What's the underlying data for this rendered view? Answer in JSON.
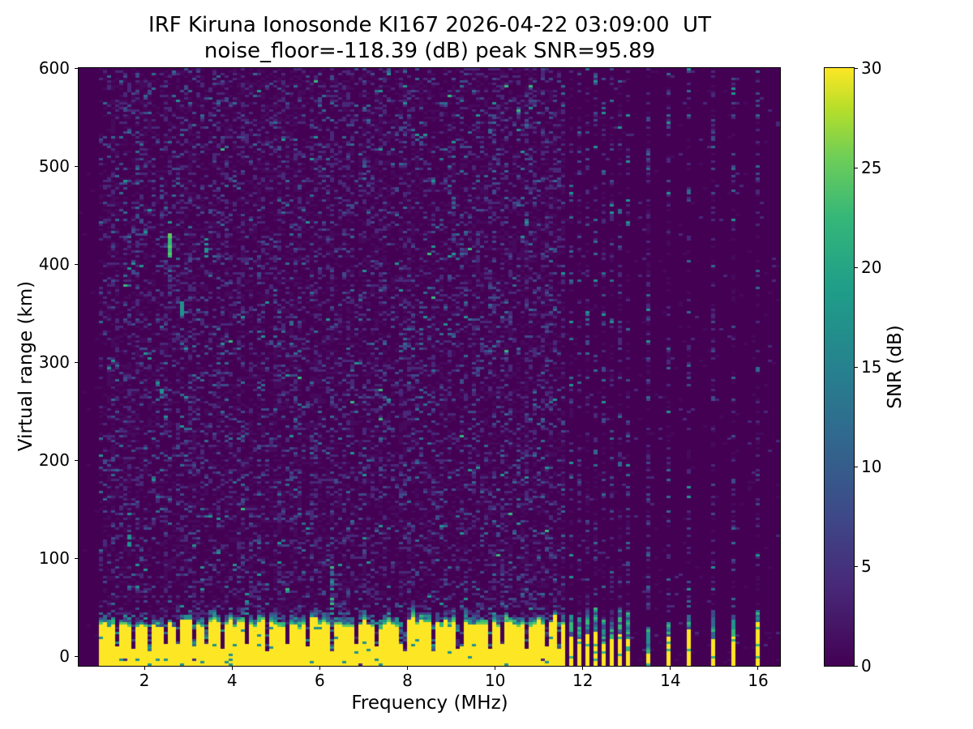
{
  "figure_title": {
    "line1": "IRF Kiruna Ionosonde KI167 2026-04-22 03:09:00  UT",
    "line2": "noise_floor=-118.39 (dB) peak SNR=95.89"
  },
  "chart_data": {
    "type": "heatmap",
    "title": "IRF Kiruna Ionosonde KI167 2026-04-22 03:09:00  UT",
    "subtitle": "noise_floor=-118.39 (dB) peak SNR=95.89",
    "station": "KI167",
    "timestamp_ut": "2026-04-22 03:09:00",
    "noise_floor_db": -118.39,
    "peak_snr_db": 95.89,
    "xlabel": "Frequency (MHz)",
    "ylabel": "Virtual range (km)",
    "colorbar_label": "SNR (dB)",
    "xlim": [
      0.5,
      16.5
    ],
    "ylim": [
      -10,
      600
    ],
    "clim": [
      0,
      30
    ],
    "x_ticks": [
      2,
      4,
      6,
      8,
      10,
      12,
      14,
      16
    ],
    "y_ticks": [
      0,
      100,
      200,
      300,
      400,
      500,
      600
    ],
    "colorbar_ticks": [
      0,
      5,
      10,
      15,
      20,
      25,
      30
    ],
    "colormap": "viridis",
    "figure_background": "#ffffff",
    "colormap_stops": [
      [
        0.0,
        "#440154"
      ],
      [
        0.13,
        "#482878"
      ],
      [
        0.25,
        "#3e4989"
      ],
      [
        0.38,
        "#31688e"
      ],
      [
        0.5,
        "#26828e"
      ],
      [
        0.63,
        "#1f9e89"
      ],
      [
        0.75,
        "#35b779"
      ],
      [
        0.85,
        "#6ece58"
      ],
      [
        0.93,
        "#b5de2b"
      ],
      [
        1.0,
        "#fde725"
      ]
    ],
    "palette": {
      "bg": "#440154",
      "faint": "#460a5d",
      "low": "#482878",
      "med": "#3e4989",
      "blue": "#31688e",
      "teal": "#21918c",
      "green": "#35b779",
      "bright": "#5ec962",
      "yellow": "#fde725"
    },
    "data_model": {
      "seed": 13,
      "freq_data_start": 1.0,
      "continuous_band": {
        "freq_end": 11.63,
        "top_km_base": 24,
        "top_km_var": 15,
        "spike_prob": 0.1,
        "spike_km": 8
      },
      "notch_freqs": [
        1.38,
        1.72,
        2.1,
        2.48,
        2.75,
        3.1,
        3.45,
        3.78,
        4.32,
        4.82,
        5.28,
        5.75,
        6.3,
        6.85,
        7.3,
        7.9,
        8.6,
        9.2,
        9.85,
        10.15,
        10.7,
        11.15,
        11.45
      ],
      "dense_bars": {
        "freq_start": 11.7,
        "spacing_mhz": 0.185,
        "count": 8,
        "yellow_top_km_min": 12,
        "yellow_top_km_var": 14,
        "mix_height_km_min": 16,
        "mix_height_km_var": 12,
        "column_speckle": 0.3
      },
      "sparse_bars": [
        {
          "freq": 13.45,
          "yellow_top_km": 3,
          "mix_top_km": 30,
          "column_speckle": 0.5
        },
        {
          "freq": 13.95,
          "yellow_top_km": 20,
          "mix_top_km": 36,
          "column_speckle": 0.3
        },
        {
          "freq": 14.45,
          "yellow_top_km": 25,
          "mix_top_km": 42,
          "column_speckle": 0.3
        },
        {
          "freq": 14.95,
          "yellow_top_km": 16,
          "mix_top_km": 46,
          "column_speckle": 0.35
        },
        {
          "freq": 15.45,
          "yellow_top_km": 22,
          "mix_top_km": 40,
          "column_speckle": 0.3
        },
        {
          "freq": 15.95,
          "yellow_top_km": 36,
          "mix_top_km": 46,
          "column_speckle": 0.3
        }
      ],
      "features": [
        {
          "freq": 2.6,
          "km_range": [
            406,
            432
          ],
          "colors": [
            [
              "bright",
              0.6
            ],
            [
              "green",
              0.4
            ]
          ],
          "density": 1.0
        },
        {
          "freq": 3.42,
          "km_range": [
            402,
            428
          ],
          "colors": [
            [
              "teal",
              1
            ]
          ],
          "density": 0.5
        },
        {
          "freq": 2.85,
          "km_range": [
            346,
            362
          ],
          "colors": [
            [
              "teal",
              1
            ]
          ],
          "density": 0.7
        },
        {
          "freq": 2.35,
          "km_range": [
            255,
            282
          ],
          "colors": [
            [
              "teal",
              0.6
            ],
            [
              "blue",
              0.4
            ]
          ],
          "density": 0.45
        },
        {
          "freq": 6.32,
          "km_range": [
            34,
            96
          ],
          "colors": [
            [
              "teal",
              0.5
            ],
            [
              "blue",
              0.3
            ],
            [
              "green",
              0.2
            ]
          ],
          "density": 0.5
        },
        {
          "freq": 4.3,
          "km_range": [
            34,
            64
          ],
          "colors": [
            [
              "teal",
              0.5
            ],
            [
              "blue",
              0.5
            ]
          ],
          "density": 0.45
        },
        {
          "freq": 1.62,
          "km_range": [
            108,
            126
          ],
          "colors": [
            [
              "teal",
              1
            ]
          ],
          "density": 0.5
        }
      ],
      "noise_speckle_probs": {
        "faint": 0.2,
        "low": 0.13,
        "med": 0.045,
        "blue": 0.013,
        "teal": 0.0035,
        "green": 0.0008
      }
    }
  }
}
